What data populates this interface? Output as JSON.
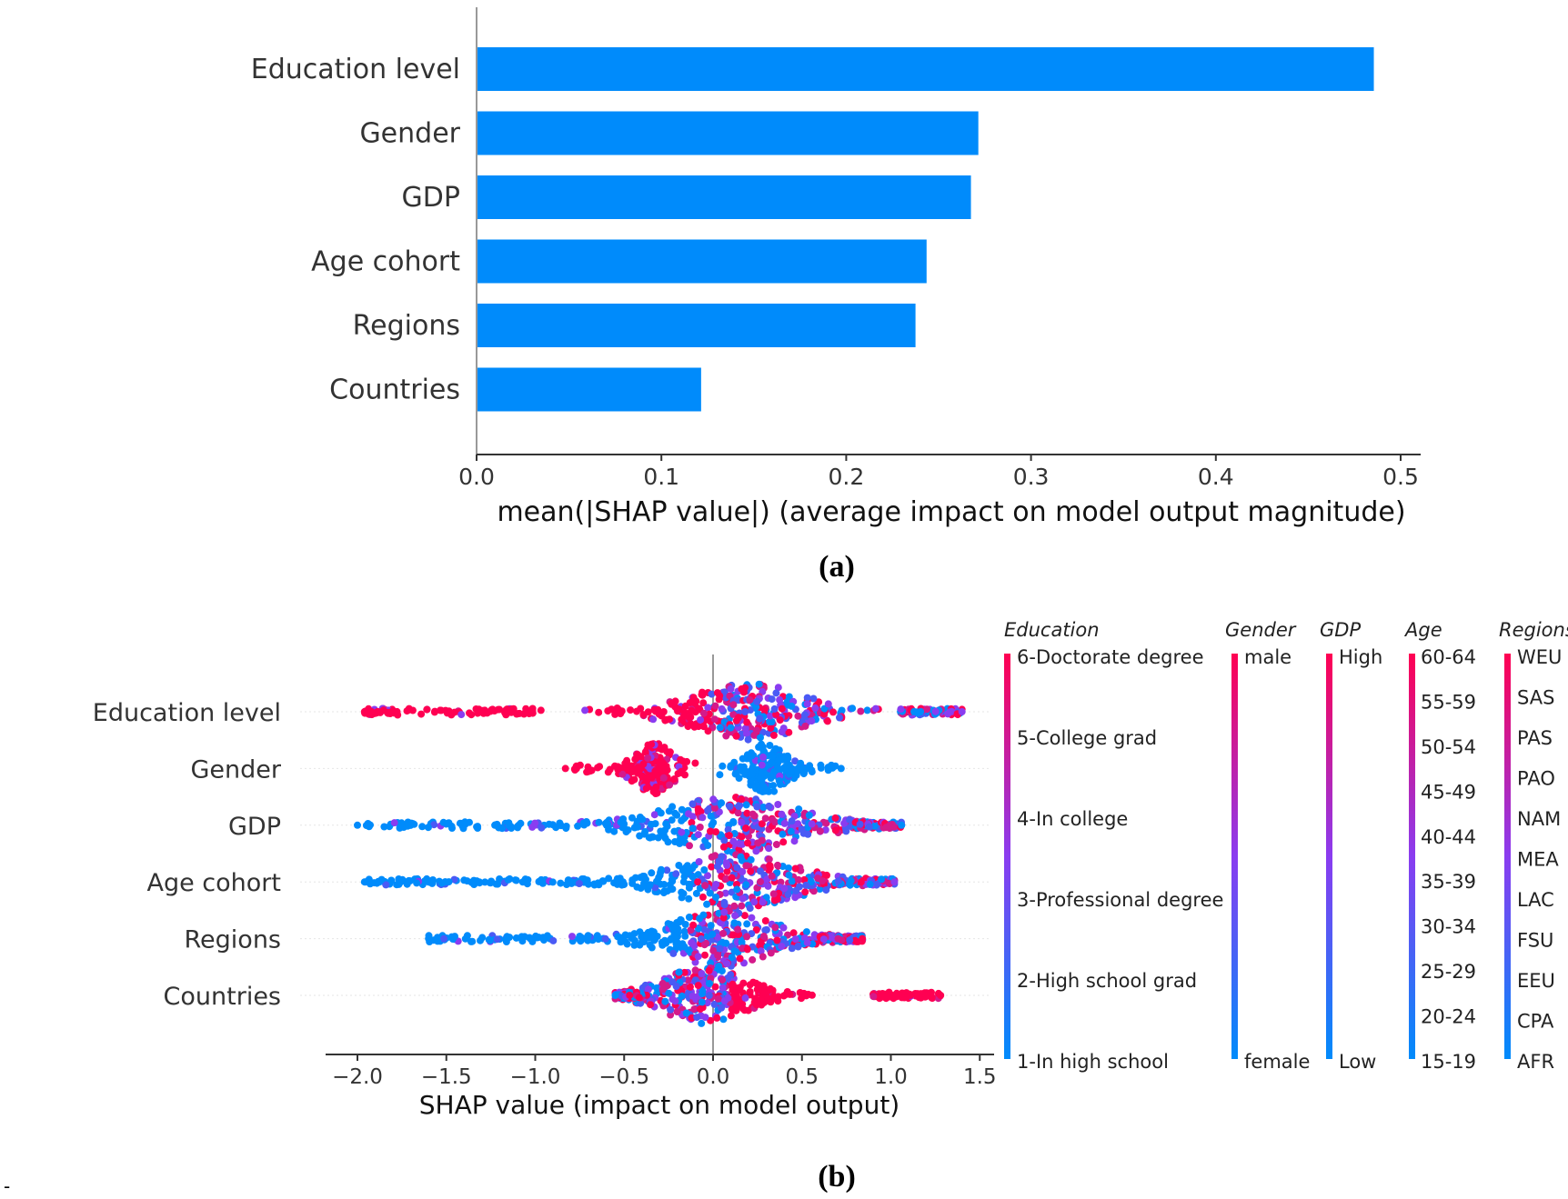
{
  "chart_data": [
    {
      "id": "a",
      "type": "bar",
      "orientation": "horizontal",
      "categories": [
        "Education level",
        "Gender",
        "GDP",
        "Age cohort",
        "Regions",
        "Countries"
      ],
      "values": [
        0.485,
        0.271,
        0.267,
        0.243,
        0.237,
        0.121
      ],
      "xlabel": "mean(|SHAP value|) (average impact on model output magnitude)",
      "xticks": [
        "0.0",
        "0.1",
        "0.2",
        "0.3",
        "0.4",
        "0.5"
      ],
      "xlim": [
        0,
        0.51
      ],
      "color": "#008bfb",
      "caption": "(a)"
    },
    {
      "id": "b",
      "type": "scatter",
      "subtype": "beeswarm",
      "categories": [
        "Education level",
        "Gender",
        "GDP",
        "Age cohort",
        "Regions",
        "Countries"
      ],
      "xlabel": "SHAP value (impact on model output)",
      "xticks": [
        "−2.0",
        "−1.5",
        "−1.0",
        "−0.5",
        "0.0",
        "0.5",
        "1.0",
        "1.5"
      ],
      "xtick_values": [
        -2.0,
        -1.5,
        -1.0,
        -0.5,
        0.0,
        0.5,
        1.0,
        1.5
      ],
      "xlim": [
        -2.2,
        1.58
      ],
      "color_low": "#008bfb",
      "color_high": "#ff0052",
      "caption": "(b)",
      "distributions": [
        {
          "feature": "Education level",
          "min": -1.96,
          "max": 1.4,
          "center": 0.2,
          "core_width": 0.35,
          "left_tail": -1.0,
          "right_tail": 1.05,
          "left_color": "high",
          "right_color": "mixed",
          "spread": 0.32
        },
        {
          "feature": "Gender",
          "min": -0.83,
          "max": 0.72,
          "center": 0.0,
          "left_mode": -0.33,
          "right_mode": 0.3,
          "left_color": "high",
          "right_color": "low",
          "spread": 0.45
        },
        {
          "feature": "GDP",
          "min": -2.0,
          "max": 1.06,
          "center": 0.1,
          "core_width": 0.4,
          "left_tail": -0.5,
          "right_tail": 0.8,
          "left_color": "low",
          "right_color": "mixed",
          "spread": 0.3
        },
        {
          "feature": "Age cohort",
          "min": -1.96,
          "max": 1.02,
          "center": 0.12,
          "core_width": 0.35,
          "left_tail": -0.5,
          "right_tail": 0.7,
          "left_color": "low",
          "right_color": "mixed",
          "spread": 0.3
        },
        {
          "feature": "Regions",
          "min": -1.6,
          "max": 0.84,
          "center": 0.05,
          "core_width": 0.3,
          "left_tail": -0.4,
          "right_tail": 0.6,
          "left_color": "low",
          "right_color": "mixed",
          "spread": 0.3
        },
        {
          "feature": "Countries",
          "min": -0.55,
          "max": 1.28,
          "center": -0.05,
          "core_width": 0.25,
          "left_tail": -0.4,
          "right_tail": 0.9,
          "left_color": "mixed",
          "right_color": "high",
          "spread": 0.3
        }
      ],
      "colorbars": [
        {
          "title": "Education",
          "labels": [
            "6-Doctorate degree",
            "5-College grad",
            "4-In college",
            "3-Professional degree",
            "2-High school grad",
            "1-In high school"
          ]
        },
        {
          "title": "Gender",
          "labels": [
            "male",
            "female"
          ]
        },
        {
          "title": "GDP",
          "labels": [
            "High",
            "Low"
          ]
        },
        {
          "title": "Age",
          "labels": [
            "60-64",
            "55-59",
            "50-54",
            "45-49",
            "40-44",
            "35-39",
            "30-34",
            "25-29",
            "20-24",
            "15-19"
          ]
        },
        {
          "title": "Regions",
          "labels": [
            "WEU",
            "SAS",
            "PAS",
            "PAO",
            "NAM",
            "MEA",
            "LAC",
            "FSU",
            "EEU",
            "CPA",
            "AFR"
          ]
        }
      ]
    }
  ],
  "footer_mark": "-"
}
